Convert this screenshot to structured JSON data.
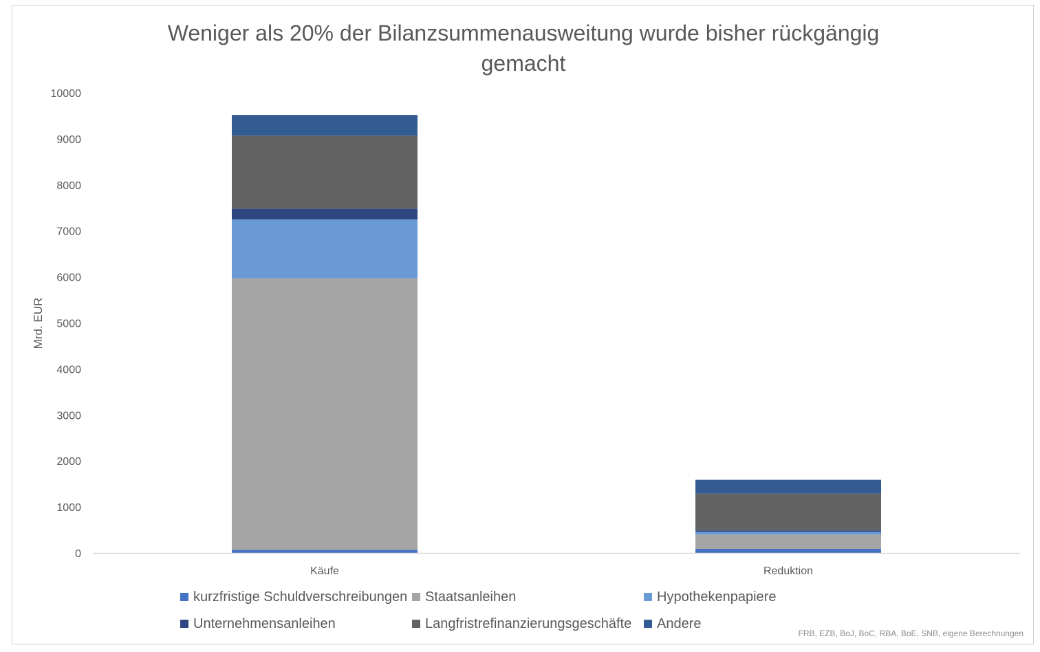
{
  "chart_data": {
    "type": "bar",
    "stacked": true,
    "title": "Weniger als 20% der Bilanzsummenausweitung wurde bisher rückgängig gemacht",
    "xlabel": "",
    "ylabel": "Mrd. EUR",
    "ylim": [
      0,
      10000
    ],
    "yticks": [
      0,
      1000,
      2000,
      3000,
      4000,
      5000,
      6000,
      7000,
      8000,
      9000,
      10000
    ],
    "grid": false,
    "legend_position": "bottom",
    "categories": [
      "Käufe",
      "Reduktion"
    ],
    "series": [
      {
        "name": "kurzfristige Schuldverschreibungen",
        "color": "#4472C4",
        "values": [
          70,
          90
        ]
      },
      {
        "name": "Staatsanleihen",
        "color": "#A5A5A5",
        "values": [
          5900,
          310
        ]
      },
      {
        "name": "Hypothekenpapiere",
        "color": "#6A9AD3",
        "values": [
          1280,
          60
        ]
      },
      {
        "name": "Unternehmensanleihen",
        "color": "#2E4780",
        "values": [
          230,
          30
        ]
      },
      {
        "name": "Langfristrefinanzierungsgeschäfte",
        "color": "#636363",
        "values": [
          1590,
          800
        ]
      },
      {
        "name": "Andere",
        "color": "#335C92",
        "values": [
          450,
          300
        ]
      }
    ],
    "source": "FRB, EZB, BoJ, BoC, RBA, BoE, SNB, eigene Berechnungen"
  }
}
